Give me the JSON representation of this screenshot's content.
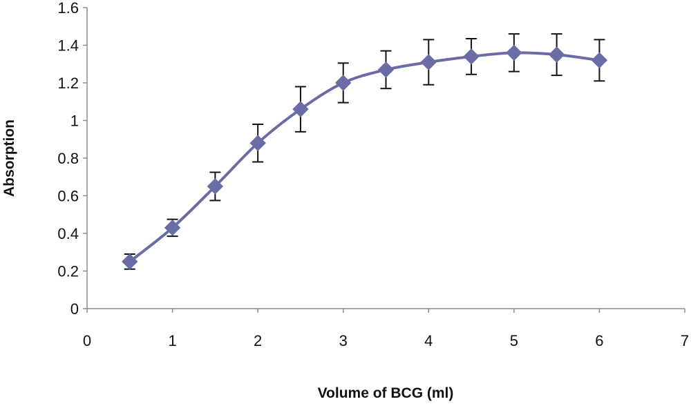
{
  "chart_data": {
    "type": "line",
    "title": "",
    "xlabel": "Volume of BCG (ml)",
    "ylabel": "Absorption",
    "xlim": [
      0,
      7
    ],
    "ylim": [
      0,
      1.6
    ],
    "x_ticks": [
      0,
      1,
      2,
      3,
      4,
      5,
      6,
      7
    ],
    "y_ticks": [
      0,
      0.2,
      0.4,
      0.6,
      0.8,
      1,
      1.2,
      1.4,
      1.6
    ],
    "x_tick_labels": [
      "0",
      "1",
      "2",
      "3",
      "4",
      "5",
      "6",
      "7"
    ],
    "y_tick_labels": [
      "0",
      "0.2",
      "0.4",
      "0.6",
      "0.8",
      "1",
      "1.2",
      "1.4",
      "1.6"
    ],
    "grid": false,
    "legend": "none",
    "series": [
      {
        "color": "#6A6CA6",
        "marker": "diamond",
        "smooth": true,
        "x": [
          0.5,
          1,
          1.5,
          2,
          2.5,
          3,
          3.5,
          4,
          4.5,
          5,
          5.5,
          6
        ],
        "y": [
          0.25,
          0.43,
          0.65,
          0.88,
          1.06,
          1.2,
          1.27,
          1.31,
          1.34,
          1.36,
          1.35,
          1.32
        ],
        "error": [
          0.04,
          0.045,
          0.075,
          0.1,
          0.12,
          0.105,
          0.1,
          0.12,
          0.095,
          0.1,
          0.11,
          0.11
        ]
      }
    ]
  }
}
